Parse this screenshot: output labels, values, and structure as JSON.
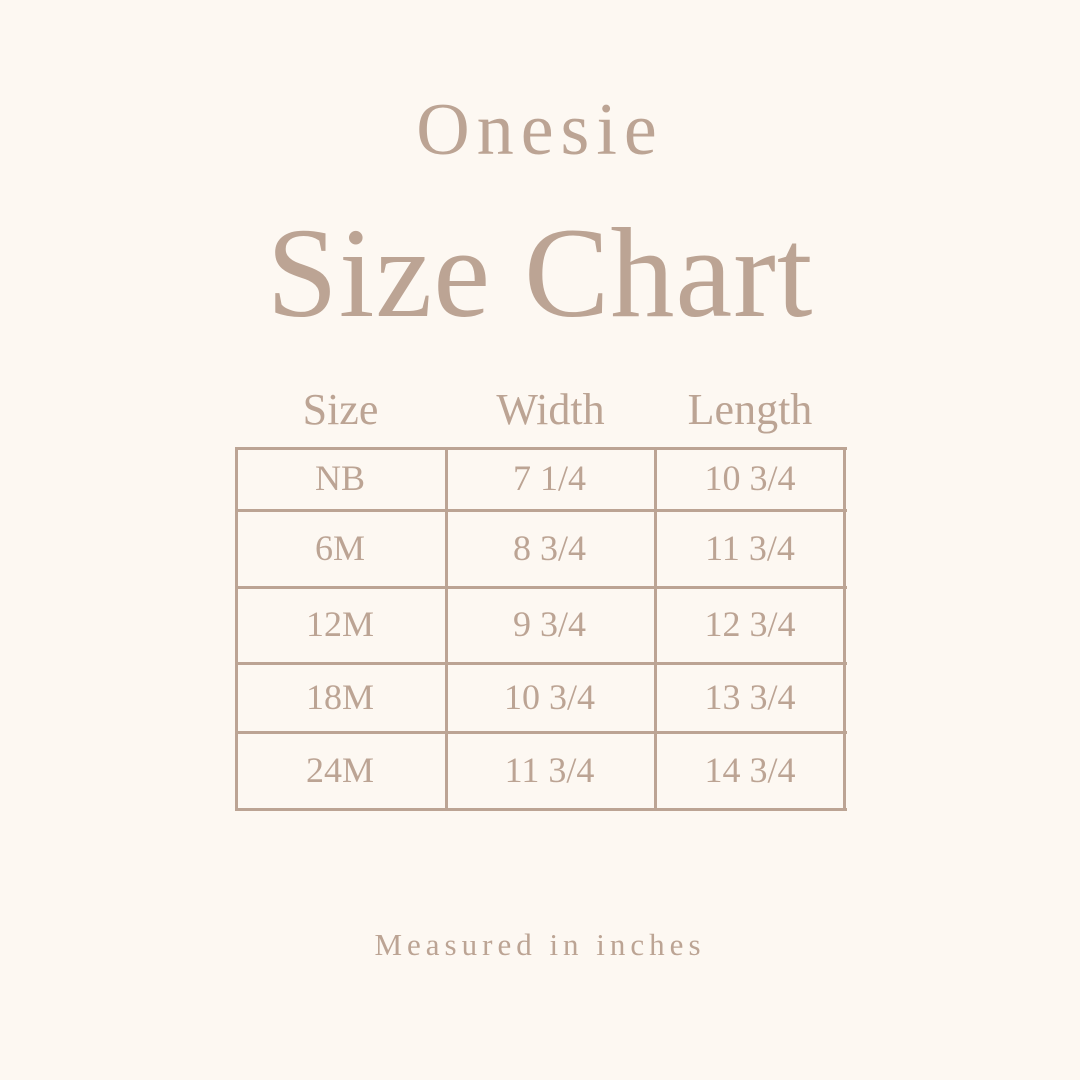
{
  "title": "Onesie",
  "subtitle": "Size Chart",
  "headers": [
    "Size",
    "Width",
    "Length"
  ],
  "rows": [
    [
      "NB",
      "7 1/4",
      "10 3/4"
    ],
    [
      "6M",
      "8 3/4",
      "11 3/4"
    ],
    [
      "12M",
      "9 3/4",
      "12 3/4"
    ],
    [
      "18M",
      "10 3/4",
      "13 3/4"
    ],
    [
      "24M",
      "11 3/4",
      "14 3/4"
    ]
  ],
  "footer": "Measured in inches",
  "colors": {
    "background": "#fdf8f2",
    "text": "#bca494"
  }
}
